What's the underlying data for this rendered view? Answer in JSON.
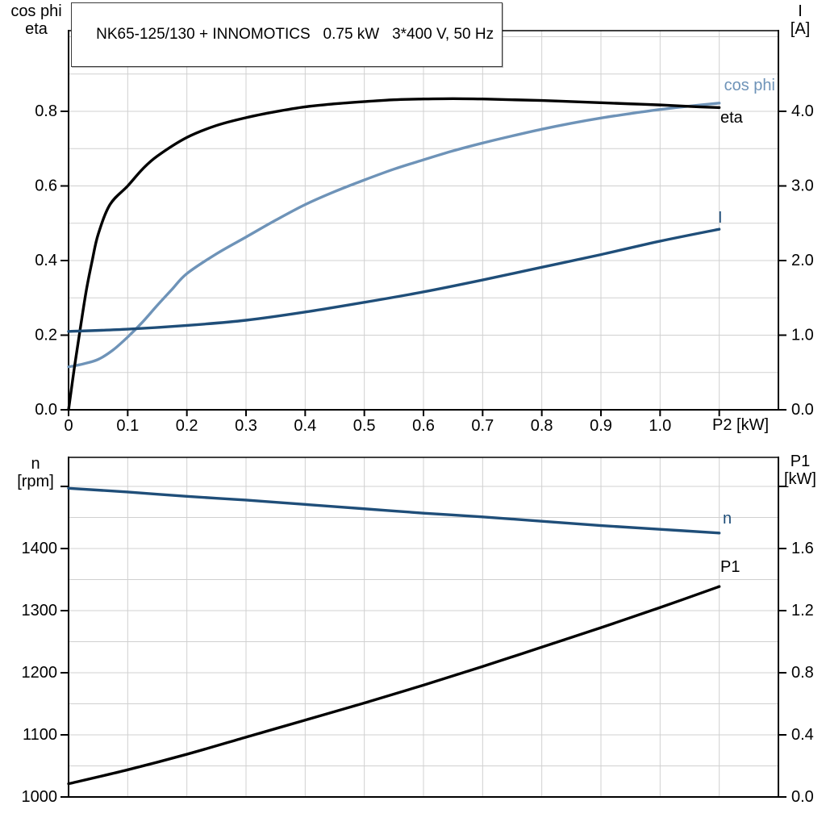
{
  "title_box": {
    "text": "NK65-125/130 + INNOMOTICS   0.75 kW   3*400 V, 50 Hz"
  },
  "colors": {
    "black": "#000000",
    "light_blue": "#6E93B8",
    "dark_blue": "#1F4E79",
    "grid": "#D0D0D0",
    "frame": "#000000"
  },
  "chart_data": [
    {
      "type": "line",
      "id": "motor-electrical-chart",
      "description": "cos phi, eta and current I versus shaft power P2",
      "x_axis": {
        "title": "P2 [kW]",
        "min": 0,
        "max": 1.2,
        "ticks": [
          0,
          0.1,
          0.2,
          0.3,
          0.4,
          0.5,
          0.6,
          0.7,
          0.8,
          0.9,
          1.0,
          1.1
        ],
        "tick_labels": [
          "0",
          "0.1",
          "0.2",
          "0.3",
          "0.4",
          "0.5",
          "0.6",
          "0.7",
          "0.8",
          "0.9",
          "1.0",
          ""
        ],
        "gridlines": [
          0.1,
          0.2,
          0.3,
          0.4,
          0.5,
          0.6,
          0.7,
          0.8,
          0.9,
          1.0,
          1.1
        ]
      },
      "y_left": {
        "title_lines": [
          "cos phi",
          "eta"
        ],
        "min": 0,
        "max": 1.0162,
        "ticks": [
          0,
          0.2,
          0.4,
          0.6,
          0.8
        ],
        "tick_labels": [
          "0.0",
          "0.2",
          "0.4",
          "0.6",
          "0.8"
        ],
        "extra_ticks": [],
        "gridlines": [
          0.1,
          0.2,
          0.3,
          0.4,
          0.5,
          0.6,
          0.7,
          0.8,
          0.9,
          1.0
        ]
      },
      "y_right": {
        "title_lines": [
          "I",
          "[A]"
        ],
        "min": 0,
        "max": 5.081,
        "ticks": [
          0,
          1,
          2,
          3,
          4
        ],
        "tick_labels": [
          "0.0",
          "1.0",
          "2.0",
          "3.0",
          "4.0"
        ],
        "extra_ticks": []
      },
      "series": [
        {
          "name": "cos phi",
          "color_key": "light_blue",
          "axis": "left",
          "points": [
            [
              0,
              0.115
            ],
            [
              0.025,
              0.123
            ],
            [
              0.05,
              0.135
            ],
            [
              0.075,
              0.16
            ],
            [
              0.1,
              0.195
            ],
            [
              0.125,
              0.235
            ],
            [
              0.15,
              0.28
            ],
            [
              0.175,
              0.323
            ],
            [
              0.2,
              0.365
            ],
            [
              0.25,
              0.418
            ],
            [
              0.3,
              0.463
            ],
            [
              0.35,
              0.508
            ],
            [
              0.4,
              0.55
            ],
            [
              0.45,
              0.585
            ],
            [
              0.5,
              0.616
            ],
            [
              0.55,
              0.645
            ],
            [
              0.6,
              0.67
            ],
            [
              0.65,
              0.694
            ],
            [
              0.7,
              0.715
            ],
            [
              0.75,
              0.734
            ],
            [
              0.8,
              0.752
            ],
            [
              0.85,
              0.768
            ],
            [
              0.9,
              0.782
            ],
            [
              0.95,
              0.794
            ],
            [
              1.0,
              0.805
            ],
            [
              1.05,
              0.814
            ],
            [
              1.1,
              0.822
            ]
          ]
        },
        {
          "name": "eta",
          "color_key": "black",
          "axis": "left",
          "points": [
            [
              0,
              0
            ],
            [
              0.01,
              0.115
            ],
            [
              0.02,
              0.22
            ],
            [
              0.03,
              0.32
            ],
            [
              0.04,
              0.4
            ],
            [
              0.05,
              0.47
            ],
            [
              0.07,
              0.55
            ],
            [
              0.1,
              0.6
            ],
            [
              0.125,
              0.645
            ],
            [
              0.15,
              0.68
            ],
            [
              0.2,
              0.73
            ],
            [
              0.25,
              0.762
            ],
            [
              0.3,
              0.783
            ],
            [
              0.35,
              0.799
            ],
            [
              0.4,
              0.812
            ],
            [
              0.45,
              0.82
            ],
            [
              0.5,
              0.826
            ],
            [
              0.55,
              0.831
            ],
            [
              0.6,
              0.833
            ],
            [
              0.65,
              0.834
            ],
            [
              0.7,
              0.833
            ],
            [
              0.75,
              0.831
            ],
            [
              0.8,
              0.829
            ],
            [
              0.85,
              0.826
            ],
            [
              0.9,
              0.823
            ],
            [
              0.95,
              0.82
            ],
            [
              1.0,
              0.817
            ],
            [
              1.05,
              0.813
            ],
            [
              1.1,
              0.81
            ]
          ]
        },
        {
          "name": "I",
          "color_key": "dark_blue",
          "axis": "right",
          "points": [
            [
              0,
              1.05
            ],
            [
              0.1,
              1.08
            ],
            [
              0.2,
              1.13
            ],
            [
              0.3,
              1.2
            ],
            [
              0.4,
              1.31
            ],
            [
              0.5,
              1.44
            ],
            [
              0.6,
              1.58
            ],
            [
              0.7,
              1.74
            ],
            [
              0.8,
              1.91
            ],
            [
              0.9,
              2.08
            ],
            [
              1.0,
              2.26
            ],
            [
              1.1,
              2.42
            ]
          ]
        }
      ]
    },
    {
      "type": "line",
      "id": "motor-speed-power-chart",
      "description": "speed n and input power P1 versus shaft power P2",
      "x_axis": {
        "title": "",
        "min": 0,
        "max": 1.2,
        "ticks": [],
        "tick_labels": [],
        "gridlines": [
          0.1,
          0.2,
          0.3,
          0.4,
          0.5,
          0.6,
          0.7,
          0.8,
          0.9,
          1.0,
          1.1
        ]
      },
      "y_left": {
        "title_lines": [
          "n",
          "[rpm]"
        ],
        "min": 1000,
        "max": 1546.8,
        "ticks": [
          1000,
          1100,
          1200,
          1300,
          1400
        ],
        "tick_labels": [
          "1000",
          "1100",
          "1200",
          "1300",
          "1400"
        ],
        "extra_ticks": [
          1500
        ],
        "gridlines": [
          1050,
          1100,
          1150,
          1200,
          1250,
          1300,
          1350,
          1400,
          1450,
          1500
        ]
      },
      "y_right": {
        "title_lines": [
          "P1",
          "[kW]"
        ],
        "min": 0,
        "max": 2.187,
        "ticks": [
          0,
          0.4,
          0.8,
          1.2,
          1.6
        ],
        "tick_labels": [
          "0.0",
          "0.4",
          "0.8",
          "1.2",
          "1.6"
        ],
        "extra_ticks": [
          2.0
        ]
      },
      "series": [
        {
          "name": "n",
          "color_key": "dark_blue",
          "axis": "left",
          "points": [
            [
              0,
              1497
            ],
            [
              0.1,
              1491
            ],
            [
              0.2,
              1484
            ],
            [
              0.3,
              1478
            ],
            [
              0.4,
              1471
            ],
            [
              0.5,
              1464
            ],
            [
              0.6,
              1457
            ],
            [
              0.7,
              1451
            ],
            [
              0.8,
              1444
            ],
            [
              0.9,
              1437
            ],
            [
              1.0,
              1431
            ],
            [
              1.1,
              1425
            ]
          ]
        },
        {
          "name": "P1",
          "color_key": "black",
          "axis": "right",
          "points": [
            [
              0,
              0.085
            ],
            [
              0.1,
              0.175
            ],
            [
              0.2,
              0.275
            ],
            [
              0.3,
              0.385
            ],
            [
              0.4,
              0.495
            ],
            [
              0.5,
              0.605
            ],
            [
              0.6,
              0.72
            ],
            [
              0.7,
              0.84
            ],
            [
              0.8,
              0.965
            ],
            [
              0.9,
              1.09
            ],
            [
              1.0,
              1.22
            ],
            [
              1.1,
              1.355
            ]
          ]
        }
      ]
    }
  ]
}
